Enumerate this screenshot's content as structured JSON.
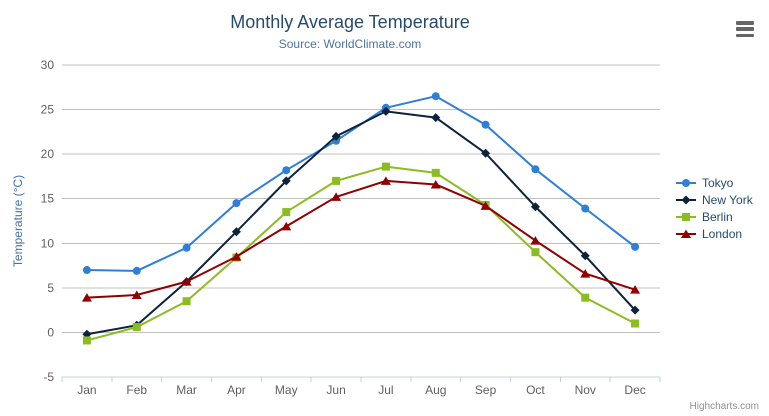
{
  "chart_data": {
    "type": "line",
    "title": "Monthly Average Temperature",
    "subtitle": "Source: WorldClimate.com",
    "xlabel": "",
    "ylabel": "Temperature (°C)",
    "ylim": [
      -5,
      30
    ],
    "yticks": [
      -5,
      0,
      5,
      10,
      15,
      20,
      25,
      30
    ],
    "grid": true,
    "legend_position": "right",
    "categories": [
      "Jan",
      "Feb",
      "Mar",
      "Apr",
      "May",
      "Jun",
      "Jul",
      "Aug",
      "Sep",
      "Oct",
      "Nov",
      "Dec"
    ],
    "series": [
      {
        "name": "Tokyo",
        "color": "#2f7ed8",
        "marker": "circle",
        "values": [
          7.0,
          6.9,
          9.5,
          14.5,
          18.2,
          21.5,
          25.2,
          26.5,
          23.3,
          18.3,
          13.9,
          9.6
        ]
      },
      {
        "name": "New York",
        "color": "#0d233a",
        "marker": "diamond",
        "values": [
          -0.2,
          0.8,
          5.7,
          11.3,
          17.0,
          22.0,
          24.8,
          24.1,
          20.1,
          14.1,
          8.6,
          2.5
        ]
      },
      {
        "name": "Berlin",
        "color": "#8bbc21",
        "marker": "square",
        "values": [
          -0.9,
          0.6,
          3.5,
          8.4,
          13.5,
          17.0,
          18.6,
          17.9,
          14.3,
          9.0,
          3.9,
          1.0
        ]
      },
      {
        "name": "London",
        "color": "#910000",
        "marker": "triangle",
        "values": [
          3.9,
          4.2,
          5.7,
          8.5,
          11.9,
          15.2,
          17.0,
          16.6,
          14.2,
          10.3,
          6.6,
          4.8
        ]
      }
    ],
    "colors": {
      "title": "#274b6d",
      "subtitle": "#4d759e",
      "axis_label": "#606060",
      "axis_title": "#4572a7",
      "gridline": "#c0c0c0",
      "axis_line": "#c0d0e0"
    }
  },
  "credits": "Highcharts.com",
  "export_menu": {
    "icon": "hamburger-icon"
  }
}
